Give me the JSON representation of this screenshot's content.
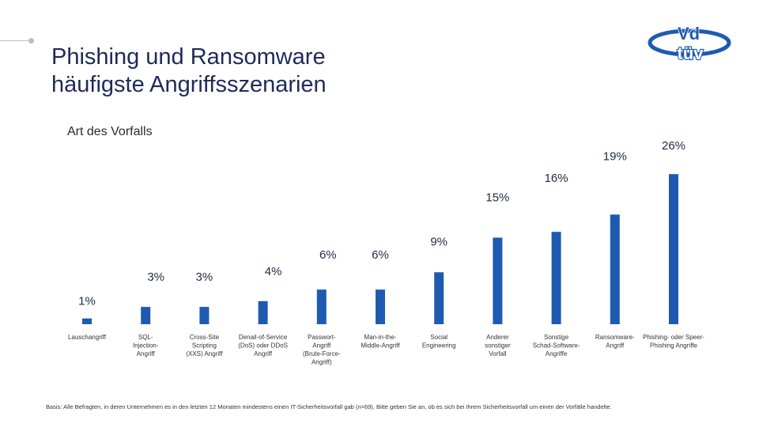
{
  "header": {
    "title_line1": "Phishing und Ransomware",
    "title_line2": "häufigste Angriffsszenarien",
    "logo_top": "Vd",
    "logo_bottom": "tüv"
  },
  "colors": {
    "bar": "#1e5bb0",
    "title": "#1f2a5a",
    "logo": "#1e5bb0"
  },
  "chart_data": {
    "type": "bar",
    "title": "Art des Vorfalls",
    "ylabel": "",
    "xlabel": "",
    "unit": "%",
    "ylim": [
      0,
      26
    ],
    "categories": [
      [
        "Lauschangriff"
      ],
      [
        "SQL-",
        "Injection-",
        "Angriff"
      ],
      [
        "Cross-Site",
        "Scripting",
        "(XXS) Angriff"
      ],
      [
        "Denail-of-Service",
        "(DoS) oder DDoS",
        "Angriff"
      ],
      [
        "Passwort-",
        "Angriff",
        "(Brute-Force-",
        "Angriff)"
      ],
      [
        "Man-in-the-",
        "Middle-Angriff"
      ],
      [
        "Social",
        "Engineering"
      ],
      [
        "Anderer",
        "sonstiger",
        "Vorfall"
      ],
      [
        "Sonstige",
        "Schad-Software-",
        "Angriffe"
      ],
      [
        "Ransomware-",
        "Angriff"
      ],
      [
        "Phishing- oder Speer-",
        "Phishing Angriffe"
      ]
    ],
    "values": [
      1,
      3,
      3,
      4,
      6,
      6,
      9,
      15,
      16,
      19,
      26
    ],
    "data_labels": [
      "1%",
      "3%",
      "3%",
      "4%",
      "6%",
      "6%",
      "9%",
      "15%",
      "16%",
      "19%",
      "26%"
    ]
  },
  "footnote": "Basis: Alle Befragten, in deren Unternehmen es in den letzten 12 Monaten mindestens einen IT-Sicherheitsvorfall gab (n=69).  Bitte geben Sie an, ob es sich bei Ihrem Sicherheitsvorfall um einen der Vorfälle handelte."
}
